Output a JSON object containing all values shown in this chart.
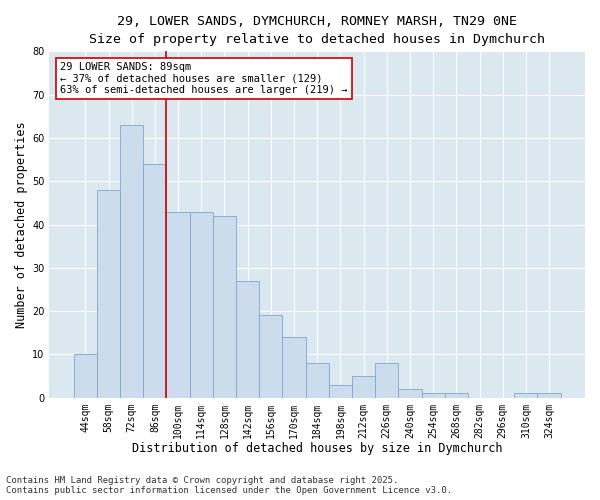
{
  "title_line1": "29, LOWER SANDS, DYMCHURCH, ROMNEY MARSH, TN29 0NE",
  "title_line2": "Size of property relative to detached houses in Dymchurch",
  "xlabel": "Distribution of detached houses by size in Dymchurch",
  "ylabel": "Number of detached properties",
  "categories": [
    "44sqm",
    "58sqm",
    "72sqm",
    "86sqm",
    "100sqm",
    "114sqm",
    "128sqm",
    "142sqm",
    "156sqm",
    "170sqm",
    "184sqm",
    "198sqm",
    "212sqm",
    "226sqm",
    "240sqm",
    "254sqm",
    "268sqm",
    "282sqm",
    "296sqm",
    "310sqm",
    "324sqm"
  ],
  "values": [
    10,
    48,
    63,
    54,
    43,
    43,
    42,
    27,
    19,
    14,
    8,
    3,
    5,
    8,
    2,
    1,
    1,
    0,
    0,
    1,
    1
  ],
  "bar_color": "#ccdcec",
  "bar_edge_color": "#7aaacc",
  "ylim": [
    0,
    80
  ],
  "yticks": [
    0,
    10,
    20,
    30,
    40,
    50,
    60,
    70,
    80
  ],
  "vline_x_idx": 3,
  "vline_color": "#cc0000",
  "annotation_text": "29 LOWER SANDS: 89sqm\n← 37% of detached houses are smaller (129)\n63% of semi-detached houses are larger (219) →",
  "annotation_box_color": "#ffffff",
  "annotation_box_edge": "#cc0000",
  "footnote_line1": "Contains HM Land Registry data © Crown copyright and database right 2025.",
  "footnote_line2": "Contains public sector information licensed under the Open Government Licence v3.0.",
  "fig_bg_color": "#ffffff",
  "plot_bg_color": "#dce8f0",
  "grid_color": "#ffffff",
  "title_fontsize": 9.5,
  "subtitle_fontsize": 9,
  "axis_label_fontsize": 8.5,
  "tick_fontsize": 7,
  "annotation_fontsize": 7.5,
  "footnote_fontsize": 6.5
}
